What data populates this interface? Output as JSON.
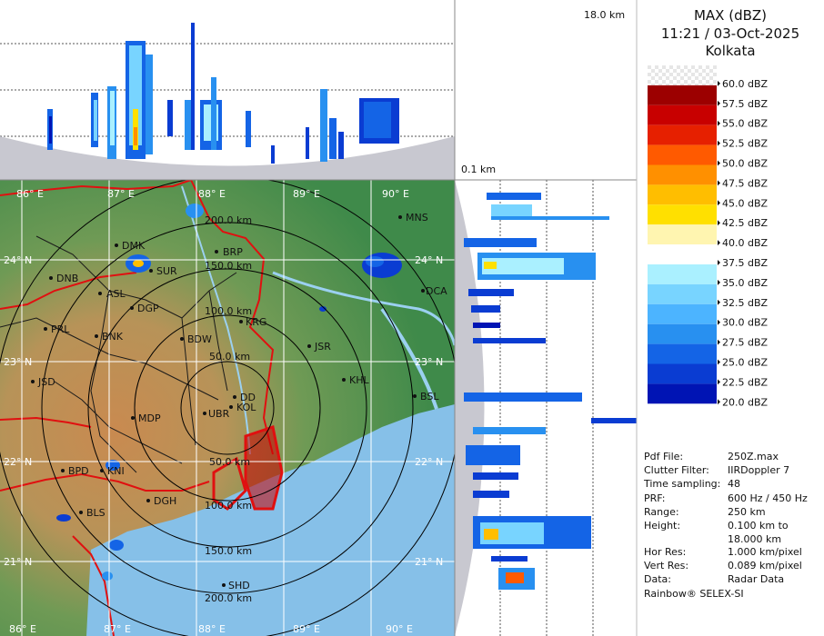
{
  "header": {
    "product": "MAX (dBZ)",
    "datetime": "11:21 / 03-Oct-2025",
    "station": "Kolkata"
  },
  "profile": {
    "top_height_label": "18.0 km",
    "bottom_height_label": "0.1 km"
  },
  "legend": {
    "items": [
      {
        "label": "60.0 dBZ",
        "color": "checker"
      },
      {
        "label": "57.5 dBZ",
        "color": "#9c0000"
      },
      {
        "label": "55.0 dBZ",
        "color": "#c80000"
      },
      {
        "label": "52.5 dBZ",
        "color": "#e62000"
      },
      {
        "label": "50.0 dBZ",
        "color": "#ff5a00"
      },
      {
        "label": "47.5 dBZ",
        "color": "#ff9000"
      },
      {
        "label": "45.0 dBZ",
        "color": "#ffbe00"
      },
      {
        "label": "42.5 dBZ",
        "color": "#ffe000"
      },
      {
        "label": "40.0 dBZ",
        "color": "#fff5b0"
      },
      {
        "label": "37.5 dBZ",
        "color": "#ffffff"
      },
      {
        "label": "35.0 dBZ",
        "color": "#aaf0ff"
      },
      {
        "label": "32.5 dBZ",
        "color": "#78d4ff"
      },
      {
        "label": "30.0 dBZ",
        "color": "#4cb4ff"
      },
      {
        "label": "27.5 dBZ",
        "color": "#2890f0"
      },
      {
        "label": "25.0 dBZ",
        "color": "#1464e6"
      },
      {
        "label": "22.5 dBZ",
        "color": "#0a3cd2"
      },
      {
        "label": "20.0 dBZ",
        "color": "#0014b4"
      }
    ]
  },
  "info": {
    "rows": [
      {
        "key": "Pdf File:",
        "value": "250Z.max"
      },
      {
        "key": "Clutter Filter:",
        "value": "IIRDoppler 7"
      },
      {
        "key": "Time sampling:",
        "value": "48"
      },
      {
        "key": "PRF:",
        "value": "600 Hz / 450 Hz"
      },
      {
        "key": "Range:",
        "value": "250 km"
      },
      {
        "key": "Height:",
        "value": "0.100 km to\n18.000 km"
      },
      {
        "key": "Hor Res:",
        "value": "1.000 km/pixel"
      },
      {
        "key": "Vert Res:",
        "value": "0.089 km/pixel"
      },
      {
        "key": "Data:",
        "value": "Radar Data"
      }
    ],
    "footer": "Rainbow® SELEX-SI"
  },
  "map": {
    "colors": {
      "land_green": "#3f8a4a",
      "land_brown": "#c98a50",
      "sea": "#86c0e8",
      "river": "#9bd0f0",
      "border": "#e01010",
      "district": "#1a1a1a",
      "range_ring": "#000000"
    },
    "lon_labels": [
      "86° E",
      "87° E",
      "88° E",
      "89° E",
      "90° E"
    ],
    "lat_labels_left": [
      "24° N",
      "23° N",
      "22° N",
      "21° N"
    ],
    "lat_labels_right": [
      "24° N",
      "23° N",
      "22° N",
      "21° N"
    ],
    "range_labels": [
      "50.0 km",
      "100.0 km",
      "150.0 km",
      "200.0 km"
    ],
    "range_labels_south": [
      "50.0 km",
      "100.0 km",
      "150.0 km",
      "200.0 km"
    ],
    "cities": [
      {
        "code": "MNS"
      },
      {
        "code": "DMK"
      },
      {
        "code": "BRP"
      },
      {
        "code": "SUR"
      },
      {
        "code": "DNB"
      },
      {
        "code": "ASL"
      },
      {
        "code": "DGP"
      },
      {
        "code": "KRG"
      },
      {
        "code": "DCA"
      },
      {
        "code": "PRL"
      },
      {
        "code": "BNK"
      },
      {
        "code": "BDW"
      },
      {
        "code": "JSR"
      },
      {
        "code": "KHL"
      },
      {
        "code": "JSD"
      },
      {
        "code": "DD"
      },
      {
        "code": "KOL"
      },
      {
        "code": "UBR"
      },
      {
        "code": "BSL"
      },
      {
        "code": "MDP"
      },
      {
        "code": "BPD"
      },
      {
        "code": "KNI"
      },
      {
        "code": "DGH"
      },
      {
        "code": "BLS"
      },
      {
        "code": "SHD"
      }
    ]
  }
}
